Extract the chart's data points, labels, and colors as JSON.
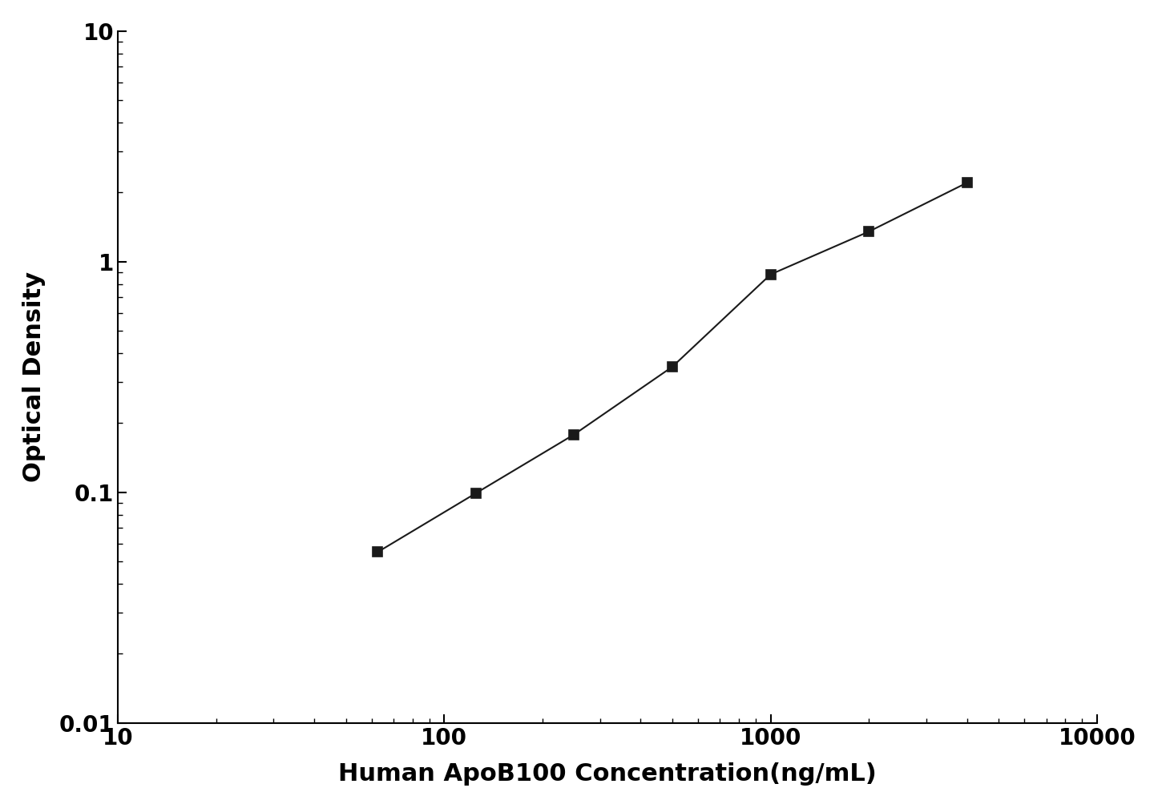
{
  "x": [
    62.5,
    125,
    250,
    500,
    1000,
    2000,
    4000
  ],
  "y": [
    0.055,
    0.099,
    0.178,
    0.35,
    0.88,
    1.35,
    2.2
  ],
  "xlabel": "Human ApoB100 Concentration(ng/mL)",
  "ylabel": "Optical Density",
  "xlim": [
    10,
    10000
  ],
  "ylim": [
    0.01,
    10
  ],
  "line_color": "#1a1a1a",
  "marker": "s",
  "marker_color": "#1a1a1a",
  "marker_size": 9,
  "line_width": 1.5,
  "xlabel_fontsize": 22,
  "ylabel_fontsize": 22,
  "tick_fontsize": 20,
  "background_color": "#ffffff"
}
